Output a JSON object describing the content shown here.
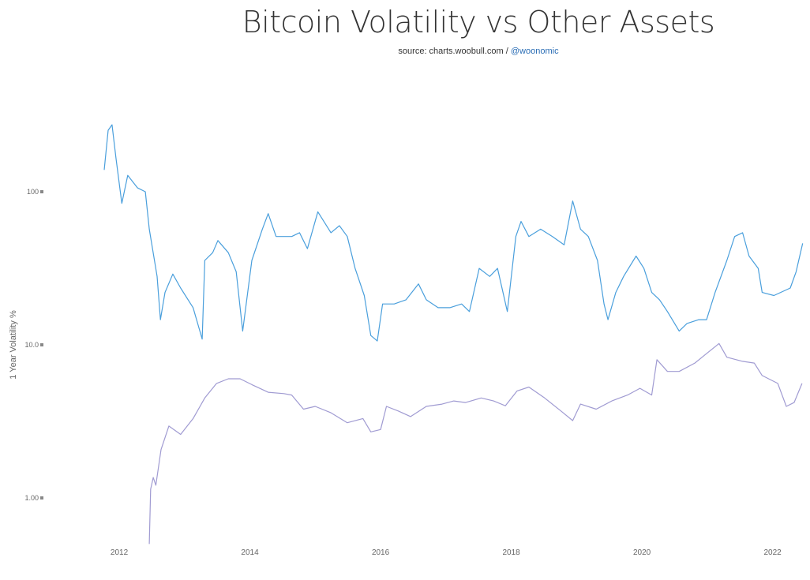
{
  "title": "Bitcoin Volatility vs Other Assets",
  "subtitle": {
    "source_text": "source: charts.woobull.com / ",
    "handle": "@woonomic"
  },
  "chart_data": {
    "type": "line",
    "title": "Bitcoin Volatility vs Other Assets",
    "xlabel": "",
    "ylabel": "1 Year Volatility %",
    "yscale": "log",
    "xlim": [
      2010.9,
      2022.5
    ],
    "ylim": [
      0.5,
      500
    ],
    "grid": false,
    "legend": "none",
    "x_ticks": [
      "2012",
      "2014",
      "2016",
      "2018",
      "2020",
      "2022"
    ],
    "y_ticks": [
      "100",
      "10.0",
      "1.00"
    ],
    "series": [
      {
        "color": "#4a9fdc",
        "x": [
          2011.77,
          2011.83,
          2011.89,
          2011.95,
          2012.04,
          2012.13,
          2012.28,
          2012.4,
          2012.46,
          2012.58,
          2012.63,
          2012.7,
          2012.82,
          2012.94,
          2013.13,
          2013.27,
          2013.31,
          2013.43,
          2013.51,
          2013.67,
          2013.79,
          2013.89,
          2014.03,
          2014.19,
          2014.28,
          2014.4,
          2014.64,
          2014.76,
          2014.88,
          2015.04,
          2015.24,
          2015.37,
          2015.49,
          2015.61,
          2015.75,
          2015.85,
          2015.95,
          2016.03,
          2016.21,
          2016.39,
          2016.58,
          2016.7,
          2016.88,
          2017.06,
          2017.24,
          2017.36,
          2017.51,
          2017.67,
          2017.79,
          2017.94,
          2018.07,
          2018.15,
          2018.27,
          2018.45,
          2018.63,
          2018.81,
          2018.94,
          2019.06,
          2019.18,
          2019.32,
          2019.42,
          2019.48,
          2019.6,
          2019.72,
          2019.91,
          2020.03,
          2020.15,
          2020.27,
          2020.39,
          2020.57,
          2020.69,
          2020.87,
          2020.99,
          2021.12,
          2021.3,
          2021.42,
          2021.54,
          2021.64,
          2021.78,
          2021.84,
          2022.02,
          2022.27,
          2022.36,
          2022.46
        ],
        "y": [
          139,
          252,
          274,
          166,
          84,
          128,
          106,
          100,
          57,
          28,
          14.6,
          22,
          29,
          23.5,
          17.5,
          10.9,
          35.6,
          40,
          48,
          40,
          30,
          12.3,
          35.6,
          57,
          72,
          51,
          51,
          54,
          42.5,
          74,
          54,
          60,
          51,
          31.6,
          21,
          11.5,
          10.6,
          18.5,
          18.5,
          19.7,
          25,
          19.7,
          17.5,
          17.5,
          18.5,
          16.5,
          31.6,
          28,
          31.6,
          16.5,
          51,
          64,
          51,
          57,
          51,
          45,
          87,
          57,
          51,
          35.6,
          18.5,
          14.6,
          22,
          28,
          38,
          31.6,
          22,
          19.7,
          16.5,
          12.3,
          13.8,
          14.6,
          14.6,
          22,
          35.6,
          51,
          54,
          38,
          31.6,
          22,
          21,
          23.5,
          30,
          46
        ]
      },
      {
        "color": "#a09bd2",
        "x": [
          2012.46,
          2012.48,
          2012.52,
          2012.56,
          2012.64,
          2012.76,
          2012.94,
          2013.13,
          2013.31,
          2013.49,
          2013.67,
          2013.85,
          2014.03,
          2014.28,
          2014.52,
          2014.64,
          2014.82,
          2015.0,
          2015.24,
          2015.49,
          2015.73,
          2015.85,
          2016.0,
          2016.09,
          2016.27,
          2016.46,
          2016.7,
          2016.94,
          2017.12,
          2017.3,
          2017.54,
          2017.73,
          2017.91,
          2018.09,
          2018.27,
          2018.51,
          2018.76,
          2018.94,
          2019.06,
          2019.3,
          2019.54,
          2019.78,
          2019.97,
          2020.15,
          2020.23,
          2020.39,
          2020.57,
          2020.81,
          2021.18,
          2021.3,
          2021.54,
          2021.72,
          2021.84,
          2022.08,
          2022.21,
          2022.33,
          2022.45
        ],
        "y": [
          0.5,
          1.14,
          1.36,
          1.21,
          2.07,
          2.95,
          2.6,
          3.3,
          4.5,
          5.6,
          6.0,
          6.0,
          5.5,
          4.9,
          4.8,
          4.7,
          3.8,
          3.96,
          3.6,
          3.1,
          3.3,
          2.7,
          2.8,
          3.96,
          3.7,
          3.4,
          3.96,
          4.1,
          4.3,
          4.2,
          4.5,
          4.3,
          4.0,
          5.0,
          5.3,
          4.5,
          3.7,
          3.2,
          4.1,
          3.8,
          4.3,
          4.7,
          5.2,
          4.7,
          8.0,
          6.7,
          6.7,
          7.6,
          10.2,
          8.3,
          7.8,
          7.6,
          6.3,
          5.6,
          3.96,
          4.2,
          5.6
        ]
      }
    ]
  }
}
